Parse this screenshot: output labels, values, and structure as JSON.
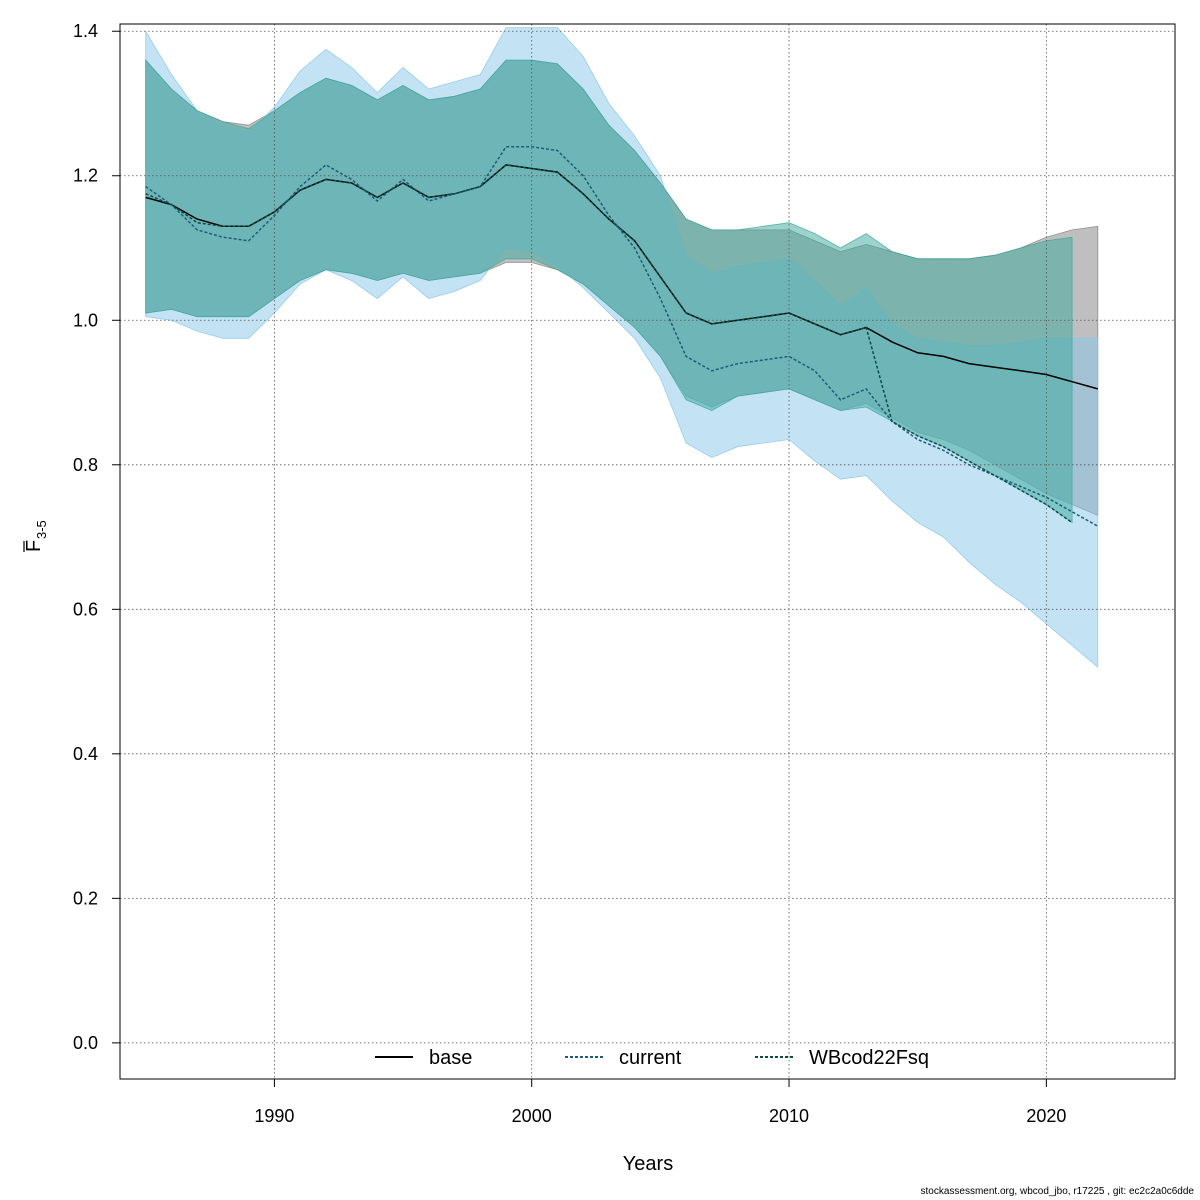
{
  "chart_data": {
    "type": "area",
    "xlabel": "Years",
    "ylabel_main": "F",
    "ylabel_sub": "3-5",
    "xlim": [
      1984,
      2025
    ],
    "ylim": [
      -0.05,
      1.41
    ],
    "x_ticks": [
      1990,
      2000,
      2010,
      2020
    ],
    "y_ticks": [
      0.0,
      0.2,
      0.4,
      0.6,
      0.8,
      1.0,
      1.2,
      1.4
    ],
    "grid": true,
    "legend_position": "bottom",
    "series": [
      {
        "name": "base",
        "line_style": "solid",
        "line_color": "#000000",
        "band_color": "#808080",
        "band_opacity": 0.5,
        "x": [
          1985,
          1986,
          1987,
          1988,
          1989,
          1990,
          1991,
          1992,
          1993,
          1994,
          1995,
          1996,
          1997,
          1998,
          1999,
          2000,
          2001,
          2002,
          2003,
          2004,
          2005,
          2006,
          2007,
          2008,
          2009,
          2010,
          2011,
          2012,
          2013,
          2014,
          2015,
          2016,
          2017,
          2018,
          2019,
          2020,
          2021,
          2022
        ],
        "y": [
          1.17,
          1.16,
          1.14,
          1.13,
          1.13,
          1.15,
          1.18,
          1.195,
          1.19,
          1.17,
          1.19,
          1.17,
          1.175,
          1.185,
          1.215,
          1.21,
          1.205,
          1.175,
          1.14,
          1.11,
          1.06,
          1.01,
          0.995,
          1.0,
          1.005,
          1.01,
          0.995,
          0.98,
          0.99,
          0.97,
          0.955,
          0.95,
          0.94,
          0.935,
          0.93,
          0.925,
          0.915,
          0.905
        ],
        "lower": [
          1.01,
          1.015,
          1.005,
          1.005,
          1.005,
          1.03,
          1.055,
          1.07,
          1.065,
          1.055,
          1.065,
          1.055,
          1.06,
          1.065,
          1.08,
          1.08,
          1.07,
          1.05,
          1.02,
          0.99,
          0.95,
          0.895,
          0.88,
          0.895,
          0.9,
          0.905,
          0.89,
          0.875,
          0.885,
          0.865,
          0.845,
          0.835,
          0.82,
          0.8,
          0.78,
          0.76,
          0.745,
          0.73
        ],
        "upper": [
          1.36,
          1.32,
          1.29,
          1.275,
          1.27,
          1.29,
          1.315,
          1.335,
          1.325,
          1.305,
          1.325,
          1.305,
          1.31,
          1.32,
          1.36,
          1.36,
          1.355,
          1.32,
          1.27,
          1.235,
          1.19,
          1.14,
          1.125,
          1.125,
          1.125,
          1.125,
          1.11,
          1.095,
          1.105,
          1.095,
          1.085,
          1.085,
          1.085,
          1.09,
          1.1,
          1.115,
          1.125,
          1.13
        ]
      },
      {
        "name": "current",
        "line_style": "dotted",
        "line_color": "#1e5c7a",
        "band_color": "#87c6ea",
        "band_opacity": 0.5,
        "x": [
          1985,
          1986,
          1987,
          1988,
          1989,
          1990,
          1991,
          1992,
          1993,
          1994,
          1995,
          1996,
          1997,
          1998,
          1999,
          2000,
          2001,
          2002,
          2003,
          2004,
          2005,
          2006,
          2007,
          2008,
          2009,
          2010,
          2011,
          2012,
          2013,
          2014,
          2015,
          2016,
          2017,
          2018,
          2019,
          2020,
          2021,
          2022
        ],
        "y": [
          1.185,
          1.16,
          1.125,
          1.115,
          1.11,
          1.145,
          1.185,
          1.215,
          1.195,
          1.165,
          1.195,
          1.165,
          1.175,
          1.185,
          1.24,
          1.24,
          1.235,
          1.2,
          1.145,
          1.1,
          1.03,
          0.95,
          0.93,
          0.94,
          0.945,
          0.95,
          0.93,
          0.89,
          0.905,
          0.86,
          0.835,
          0.82,
          0.8,
          0.785,
          0.77,
          0.755,
          0.735,
          0.715
        ],
        "lower": [
          1.005,
          1.0,
          0.985,
          0.975,
          0.975,
          1.01,
          1.05,
          1.07,
          1.055,
          1.03,
          1.06,
          1.03,
          1.04,
          1.055,
          1.1,
          1.095,
          1.075,
          1.045,
          1.01,
          0.975,
          0.92,
          0.83,
          0.81,
          0.825,
          0.83,
          0.835,
          0.805,
          0.78,
          0.785,
          0.75,
          0.72,
          0.7,
          0.665,
          0.635,
          0.61,
          0.58,
          0.55,
          0.52
        ],
        "upper": [
          1.4,
          1.34,
          1.29,
          1.27,
          1.26,
          1.295,
          1.345,
          1.375,
          1.35,
          1.315,
          1.35,
          1.32,
          1.33,
          1.34,
          1.405,
          1.405,
          1.405,
          1.365,
          1.3,
          1.255,
          1.2,
          1.09,
          1.065,
          1.075,
          1.08,
          1.085,
          1.055,
          1.02,
          1.045,
          0.995,
          0.975,
          0.97,
          0.965,
          0.965,
          0.97,
          0.975,
          0.975,
          0.975
        ]
      },
      {
        "name": "WBcod22Fsq",
        "line_style": "dotted",
        "line_color": "#0f4a44",
        "band_color": "#3aa89a",
        "band_opacity": 0.5,
        "x": [
          1985,
          1986,
          1987,
          1988,
          1989,
          1990,
          1991,
          1992,
          1993,
          1994,
          1995,
          1996,
          1997,
          1998,
          1999,
          2000,
          2001,
          2002,
          2003,
          2004,
          2005,
          2006,
          2007,
          2008,
          2009,
          2010,
          2011,
          2012,
          2013,
          2014,
          2015,
          2016,
          2017,
          2018,
          2019,
          2020,
          2021
        ],
        "y": [
          1.175,
          1.16,
          1.135,
          1.13,
          1.13,
          1.15,
          1.18,
          1.195,
          1.19,
          1.17,
          1.19,
          1.17,
          1.175,
          1.185,
          1.215,
          1.21,
          1.205,
          1.175,
          1.14,
          1.11,
          1.06,
          1.01,
          0.995,
          1.0,
          1.005,
          1.01,
          0.995,
          0.98,
          0.99,
          0.86,
          0.84,
          0.825,
          0.805,
          0.785,
          0.765,
          0.745,
          0.72
        ],
        "lower": [
          1.01,
          1.015,
          1.005,
          1.005,
          1.005,
          1.03,
          1.055,
          1.07,
          1.065,
          1.055,
          1.065,
          1.055,
          1.06,
          1.065,
          1.085,
          1.085,
          1.07,
          1.05,
          1.02,
          0.99,
          0.95,
          0.89,
          0.875,
          0.895,
          0.9,
          0.905,
          0.89,
          0.875,
          0.88,
          0.86,
          0.84,
          0.825,
          0.805,
          0.785,
          0.765,
          0.745,
          0.72
        ],
        "upper": [
          1.36,
          1.32,
          1.29,
          1.275,
          1.265,
          1.29,
          1.315,
          1.335,
          1.325,
          1.305,
          1.325,
          1.305,
          1.31,
          1.32,
          1.36,
          1.36,
          1.355,
          1.32,
          1.27,
          1.235,
          1.19,
          1.14,
          1.125,
          1.125,
          1.13,
          1.135,
          1.12,
          1.1,
          1.12,
          1.095,
          1.085,
          1.085,
          1.085,
          1.09,
          1.1,
          1.11,
          1.115
        ]
      }
    ]
  },
  "footer_text": "stockassessment.org, wbcod_jbo, r17225 , git: ec2c2a0c6dde"
}
